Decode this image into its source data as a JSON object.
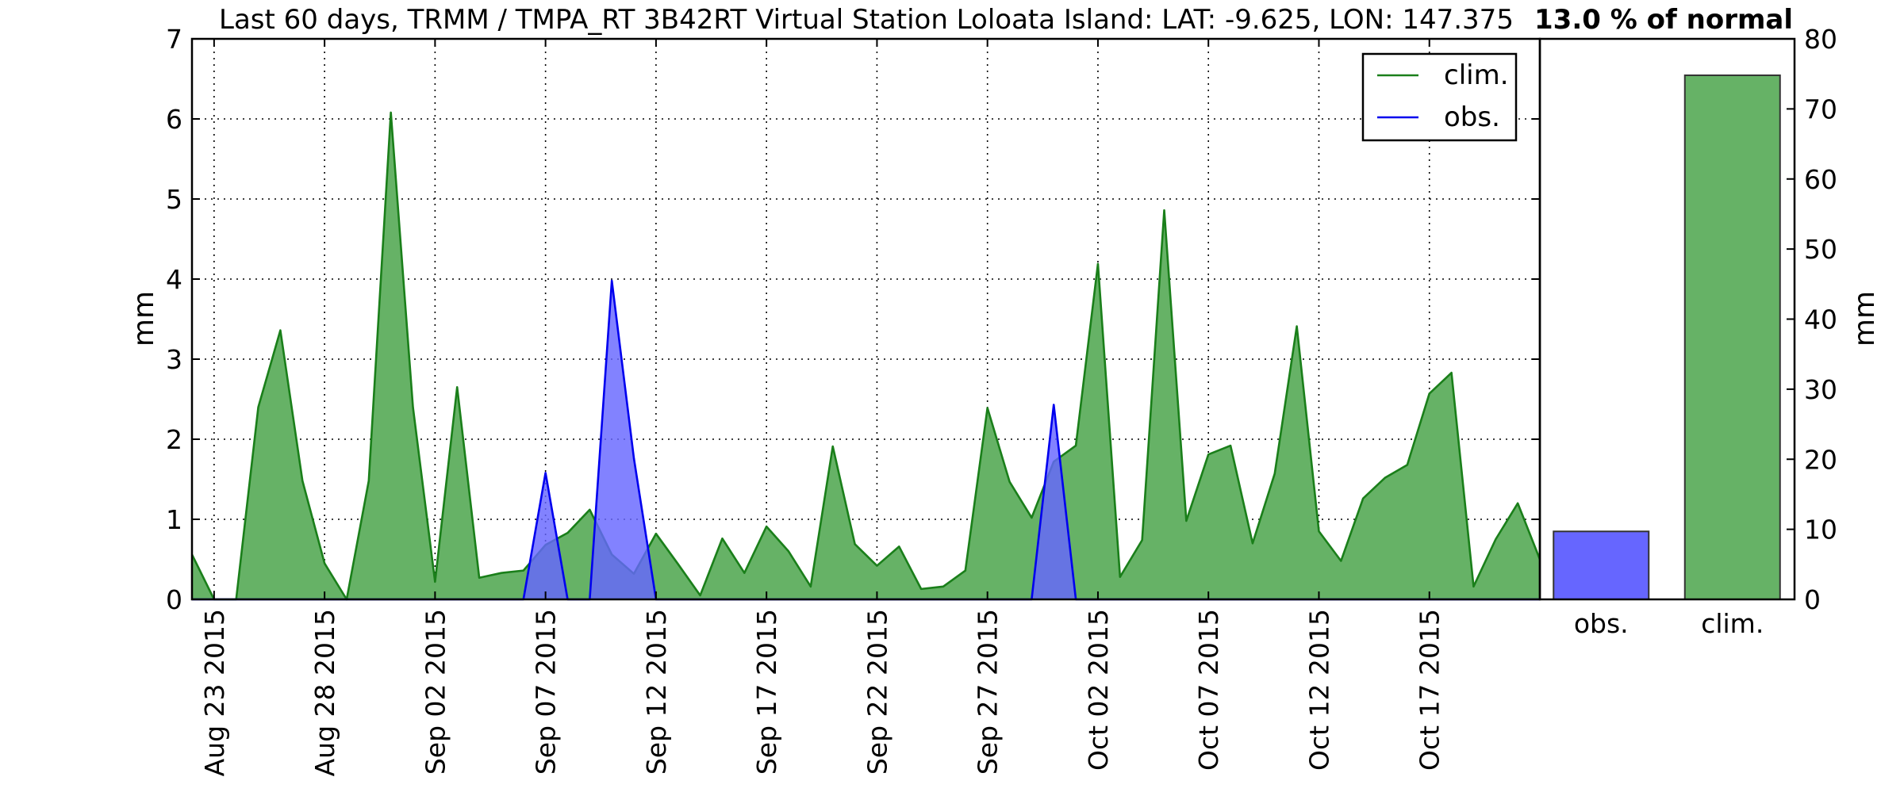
{
  "title": "Last 60 days, TRMM / TMPA_RT 3B42RT Virtual Station Loloata Island: LAT: -9.625, LON: 147.375",
  "percent_label": "13.0 % of normal",
  "colors": {
    "clim_line": "#1a7f1a",
    "clim_fill": "#66b266",
    "obs_line": "#0000ee",
    "obs_fill": "#6666ff",
    "obs_bar": "#6666ff",
    "clim_bar": "#66b266"
  },
  "chart_data": [
    {
      "type": "area",
      "title": "Last 60 days, TRMM / TMPA_RT 3B42RT Virtual Station Loloata Island: LAT: -9.625, LON: 147.375",
      "xlabel": "",
      "ylabel": "mm",
      "ylim": [
        0,
        7
      ],
      "yticks": [
        0,
        1,
        2,
        3,
        4,
        5,
        6,
        7
      ],
      "xlim": [
        "Aug 23 2015",
        "Oct 21 2015"
      ],
      "x_tick_labels": [
        "Aug 23 2015",
        "Aug 28 2015",
        "Sep 02 2015",
        "Sep 07 2015",
        "Sep 12 2015",
        "Sep 17 2015",
        "Sep 22 2015",
        "Sep 27 2015",
        "Oct 02 2015",
        "Oct 07 2015",
        "Oct 12 2015",
        "Oct 17 2015"
      ],
      "x": [
        "Aug 22 2015",
        "Aug 23 2015",
        "Aug 24 2015",
        "Aug 25 2015",
        "Aug 26 2015",
        "Aug 27 2015",
        "Aug 28 2015",
        "Aug 29 2015",
        "Aug 30 2015",
        "Aug 31 2015",
        "Sep 01 2015",
        "Sep 02 2015",
        "Sep 03 2015",
        "Sep 04 2015",
        "Sep 05 2015",
        "Sep 06 2015",
        "Sep 07 2015",
        "Sep 08 2015",
        "Sep 09 2015",
        "Sep 10 2015",
        "Sep 11 2015",
        "Sep 12 2015",
        "Sep 13 2015",
        "Sep 14 2015",
        "Sep 15 2015",
        "Sep 16 2015",
        "Sep 17 2015",
        "Sep 18 2015",
        "Sep 19 2015",
        "Sep 20 2015",
        "Sep 21 2015",
        "Sep 22 2015",
        "Sep 23 2015",
        "Sep 24 2015",
        "Sep 25 2015",
        "Sep 26 2015",
        "Sep 27 2015",
        "Sep 28 2015",
        "Sep 29 2015",
        "Sep 30 2015",
        "Oct 01 2015",
        "Oct 02 2015",
        "Oct 03 2015",
        "Oct 04 2015",
        "Oct 05 2015",
        "Oct 06 2015",
        "Oct 07 2015",
        "Oct 08 2015",
        "Oct 09 2015",
        "Oct 10 2015",
        "Oct 11 2015",
        "Oct 12 2015",
        "Oct 13 2015",
        "Oct 14 2015",
        "Oct 15 2015",
        "Oct 16 2015",
        "Oct 17 2015",
        "Oct 18 2015",
        "Oct 19 2015",
        "Oct 20 2015",
        "Oct 21 2015",
        "Oct 22 2015"
      ],
      "grid": true,
      "legend": "top-right",
      "series": [
        {
          "name": "clim.",
          "color": "#1a7f1a",
          "values": [
            0.56,
            0,
            0,
            2.4,
            3.36,
            1.48,
            0.45,
            0,
            1.48,
            6.08,
            2.4,
            0.22,
            2.65,
            0.27,
            0.33,
            0.36,
            0.68,
            0.83,
            1.12,
            0.56,
            0.32,
            0.82,
            0.44,
            0.05,
            0.76,
            0.33,
            0.91,
            0.6,
            0.16,
            1.91,
            0.69,
            0.42,
            0.66,
            0.13,
            0.16,
            0.36,
            2.39,
            1.47,
            1.02,
            1.72,
            1.92,
            4.19,
            0.28,
            0.74,
            4.86,
            0.98,
            1.81,
            1.92,
            0.7,
            1.57,
            3.41,
            0.85,
            0.48,
            1.26,
            1.52,
            1.68,
            2.57,
            2.83,
            0.16,
            0.75,
            1.2,
            0.5
          ]
        },
        {
          "name": "obs.",
          "color": "#0000ee",
          "values": [
            0,
            0,
            0,
            0,
            0,
            0,
            0,
            0,
            0,
            0,
            0,
            0,
            0,
            0,
            0,
            0,
            1.58,
            0,
            0,
            3.98,
            1.76,
            0,
            0,
            0,
            0,
            0,
            0,
            0,
            0,
            0,
            0,
            0,
            0,
            0,
            0,
            0,
            0,
            0,
            0,
            2.43,
            0,
            0,
            0,
            0,
            0,
            0,
            0,
            0,
            0,
            0,
            0,
            0,
            0,
            0,
            0,
            0,
            0,
            0,
            0,
            0,
            0,
            0
          ]
        }
      ]
    },
    {
      "type": "bar",
      "categories": [
        "obs.",
        "clim."
      ],
      "values": [
        9.7,
        74.8
      ],
      "ylabel": "mm",
      "ylim": [
        0,
        80
      ],
      "yticks": [
        0,
        10,
        20,
        30,
        40,
        50,
        60,
        70,
        80
      ]
    }
  ]
}
